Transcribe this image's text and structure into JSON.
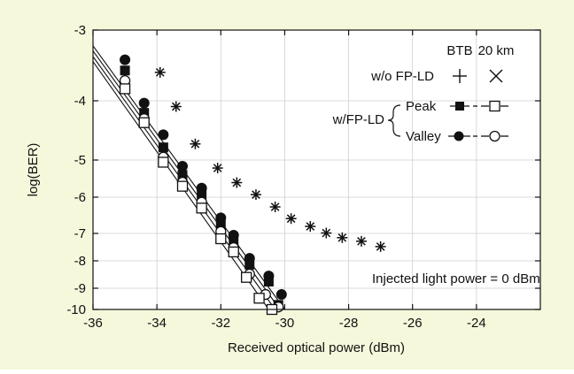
{
  "colors": {
    "background": "#f6f8dc",
    "plot_area": "#ffffff",
    "ink": "#111111",
    "grid": "#cfcfcf"
  },
  "chart_data": {
    "type": "scatter",
    "title": "",
    "xlabel": "Received optical power (dBm)",
    "ylabel": "log(BER)",
    "xlim": [
      -36,
      -22
    ],
    "ylim": [
      -10,
      -3
    ],
    "y_scale": "log(BER) with stretched lower decades",
    "y_ticks": [
      -3,
      -4,
      -5,
      -6,
      -7,
      -8,
      -9,
      -10
    ],
    "x_ticks": [
      -36,
      -34,
      -32,
      -30,
      -28,
      -26,
      -24
    ],
    "y_tick_positions": [
      [
        -3,
        -3.0
      ],
      [
        -4,
        -4.12
      ],
      [
        -5,
        -5.15
      ],
      [
        -6,
        -6.17
      ],
      [
        -7,
        -7.1
      ],
      [
        -8,
        -7.87
      ],
      [
        -9,
        -8.45
      ],
      [
        -10,
        -8.96
      ]
    ],
    "grid": true,
    "legend": {
      "placement": "top-right",
      "col_headers": [
        "BTB",
        "20 km"
      ],
      "rows": [
        {
          "label": "w/o FP-LD",
          "btb_symbol": "+",
          "km_symbol": "×"
        },
        {
          "group": "w/FP-LD",
          "label": "Peak",
          "btb_marker": "filled-square",
          "km_marker": "open-square"
        },
        {
          "group": "w/FP-LD",
          "label": "Valley",
          "btb_marker": "filled-circle",
          "km_marker": "open-circle"
        }
      ]
    },
    "annotation": "Injected light power = 0 dBm",
    "series": [
      {
        "marker": "star",
        "points": [
          [
            -33.9,
            -3.67
          ],
          [
            -33.4,
            -4.22
          ],
          [
            -32.8,
            -4.87
          ],
          [
            -32.1,
            -5.37
          ],
          [
            -31.5,
            -5.77
          ],
          [
            -30.9,
            -6.1
          ],
          [
            -30.3,
            -6.42
          ],
          [
            -29.8,
            -6.72
          ],
          [
            -29.2,
            -6.92
          ],
          [
            -28.7,
            -7.09
          ],
          [
            -28.2,
            -7.22
          ],
          [
            -27.6,
            -7.32
          ],
          [
            -27.0,
            -7.47
          ]
        ]
      },
      {
        "marker": "filled-circle",
        "points": [
          [
            -35.0,
            -3.47
          ],
          [
            -34.4,
            -4.16
          ],
          [
            -33.8,
            -4.71
          ],
          [
            -33.2,
            -5.32
          ],
          [
            -32.6,
            -5.92
          ],
          [
            -32.0,
            -6.7
          ],
          [
            -31.6,
            -7.15
          ],
          [
            -31.1,
            -7.8
          ],
          [
            -30.5,
            -8.19
          ],
          [
            -30.1,
            -8.6
          ]
        ]
      },
      {
        "marker": "filled-square",
        "points": [
          [
            -35.0,
            -3.64
          ],
          [
            -34.4,
            -4.33
          ],
          [
            -33.8,
            -4.93
          ],
          [
            -33.2,
            -5.56
          ],
          [
            -32.6,
            -6.1
          ],
          [
            -32.0,
            -6.87
          ],
          [
            -31.6,
            -7.34
          ],
          [
            -31.1,
            -7.95
          ],
          [
            -30.5,
            -8.31
          ],
          [
            -30.2,
            -8.85
          ]
        ]
      },
      {
        "marker": "open-circle",
        "points": [
          [
            -35.0,
            -3.8
          ],
          [
            -34.4,
            -4.43
          ],
          [
            -33.8,
            -5.1
          ],
          [
            -33.2,
            -5.76
          ],
          [
            -32.6,
            -6.3
          ],
          [
            -32.0,
            -7.05
          ],
          [
            -31.6,
            -7.5
          ],
          [
            -31.1,
            -8.15
          ],
          [
            -30.6,
            -8.6
          ],
          [
            -30.2,
            -8.9
          ]
        ]
      },
      {
        "marker": "open-square",
        "points": [
          [
            -35.0,
            -3.93
          ],
          [
            -34.4,
            -4.5
          ],
          [
            -33.8,
            -5.21
          ],
          [
            -33.2,
            -5.87
          ],
          [
            -32.6,
            -6.45
          ],
          [
            -32.0,
            -7.25
          ],
          [
            -31.6,
            -7.62
          ],
          [
            -31.2,
            -8.22
          ],
          [
            -30.8,
            -8.69
          ],
          [
            -30.4,
            -8.96
          ]
        ]
      }
    ],
    "fit_lines": [
      {
        "from": [
          -36.0,
          -3.25
        ],
        "to": [
          -30.0,
          -8.96
        ]
      },
      {
        "from": [
          -36.0,
          -3.33
        ],
        "to": [
          -30.15,
          -8.96
        ]
      },
      {
        "from": [
          -36.0,
          -3.42
        ],
        "to": [
          -30.3,
          -8.96
        ]
      },
      {
        "from": [
          -36.0,
          -3.5
        ],
        "to": [
          -30.5,
          -8.96
        ]
      }
    ]
  }
}
